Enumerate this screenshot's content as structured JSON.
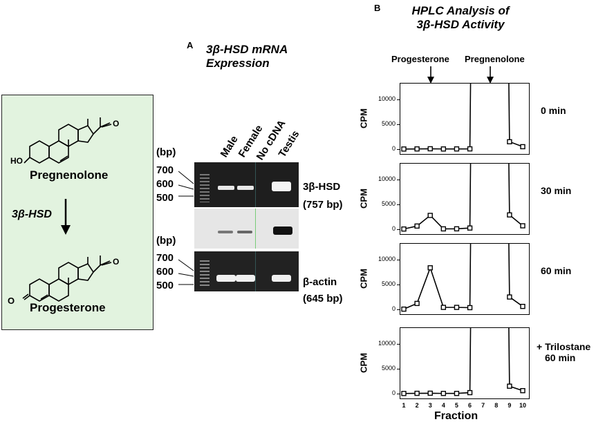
{
  "scheme": {
    "substrate": "Pregnenolone",
    "enzyme": "3β-HSD",
    "product": "Progesterone",
    "ho_label": "HO",
    "o_label": "O"
  },
  "panel_a": {
    "letter": "A",
    "title_line1": "3β-HSD mRNA",
    "title_line2": "Expression",
    "lanes": [
      "Male",
      "Female",
      "No cDNA",
      "Testis"
    ],
    "bp_unit": "(bp)",
    "ladder": [
      "700",
      "600",
      "500"
    ],
    "band1_name": "3β-HSD",
    "band1_size": "(757 bp)",
    "band2_name": "β-actin",
    "band2_size": "(645 bp)"
  },
  "panel_b": {
    "letter": "B",
    "title_line1": "HPLC Analysis of",
    "title_line2": "3β-HSD Activity",
    "marker1": "Progesterone",
    "marker2": "Pregnenolone",
    "xlabel": "Fraction",
    "ylabel": "CPM"
  },
  "chart_data": [
    {
      "type": "line",
      "title": "0 min",
      "xlabel": "Fraction",
      "ylabel": "CPM",
      "x": [
        1,
        2,
        3,
        4,
        5,
        6,
        7,
        8,
        9,
        10
      ],
      "values": [
        30,
        50,
        80,
        40,
        50,
        60,
        null,
        null,
        1500,
        500
      ],
      "ylim": [
        0,
        12000
      ],
      "yticks": [
        0,
        5000,
        10000
      ],
      "off_scale": [
        6,
        9
      ]
    },
    {
      "type": "line",
      "title": "30 min",
      "xlabel": "Fraction",
      "ylabel": "CPM",
      "x": [
        1,
        2,
        3,
        4,
        5,
        6,
        7,
        8,
        9,
        10
      ],
      "values": [
        50,
        650,
        2800,
        80,
        90,
        250,
        null,
        null,
        2900,
        700
      ],
      "ylim": [
        0,
        12000
      ],
      "yticks": [
        0,
        5000,
        10000
      ],
      "off_scale": [
        6,
        9
      ]
    },
    {
      "type": "line",
      "title": "60 min",
      "xlabel": "Fraction",
      "ylabel": "CPM",
      "x": [
        1,
        2,
        3,
        4,
        5,
        6,
        7,
        8,
        9,
        10
      ],
      "values": [
        50,
        1200,
        8400,
        400,
        400,
        350,
        null,
        null,
        2500,
        600
      ],
      "ylim": [
        0,
        12000
      ],
      "yticks": [
        0,
        5000,
        10000
      ],
      "off_scale": [
        6,
        9
      ]
    },
    {
      "type": "line",
      "title_line1": "+ Trilostane",
      "title_line2": "60 min",
      "xlabel": "Fraction",
      "ylabel": "CPM",
      "x": [
        1,
        2,
        3,
        4,
        5,
        6,
        7,
        8,
        9,
        10
      ],
      "values": [
        30,
        60,
        80,
        40,
        40,
        200,
        null,
        null,
        1500,
        600
      ],
      "ylim": [
        0,
        12000
      ],
      "yticks": [
        0,
        5000,
        10000
      ],
      "off_scale": [
        6,
        9
      ]
    }
  ]
}
